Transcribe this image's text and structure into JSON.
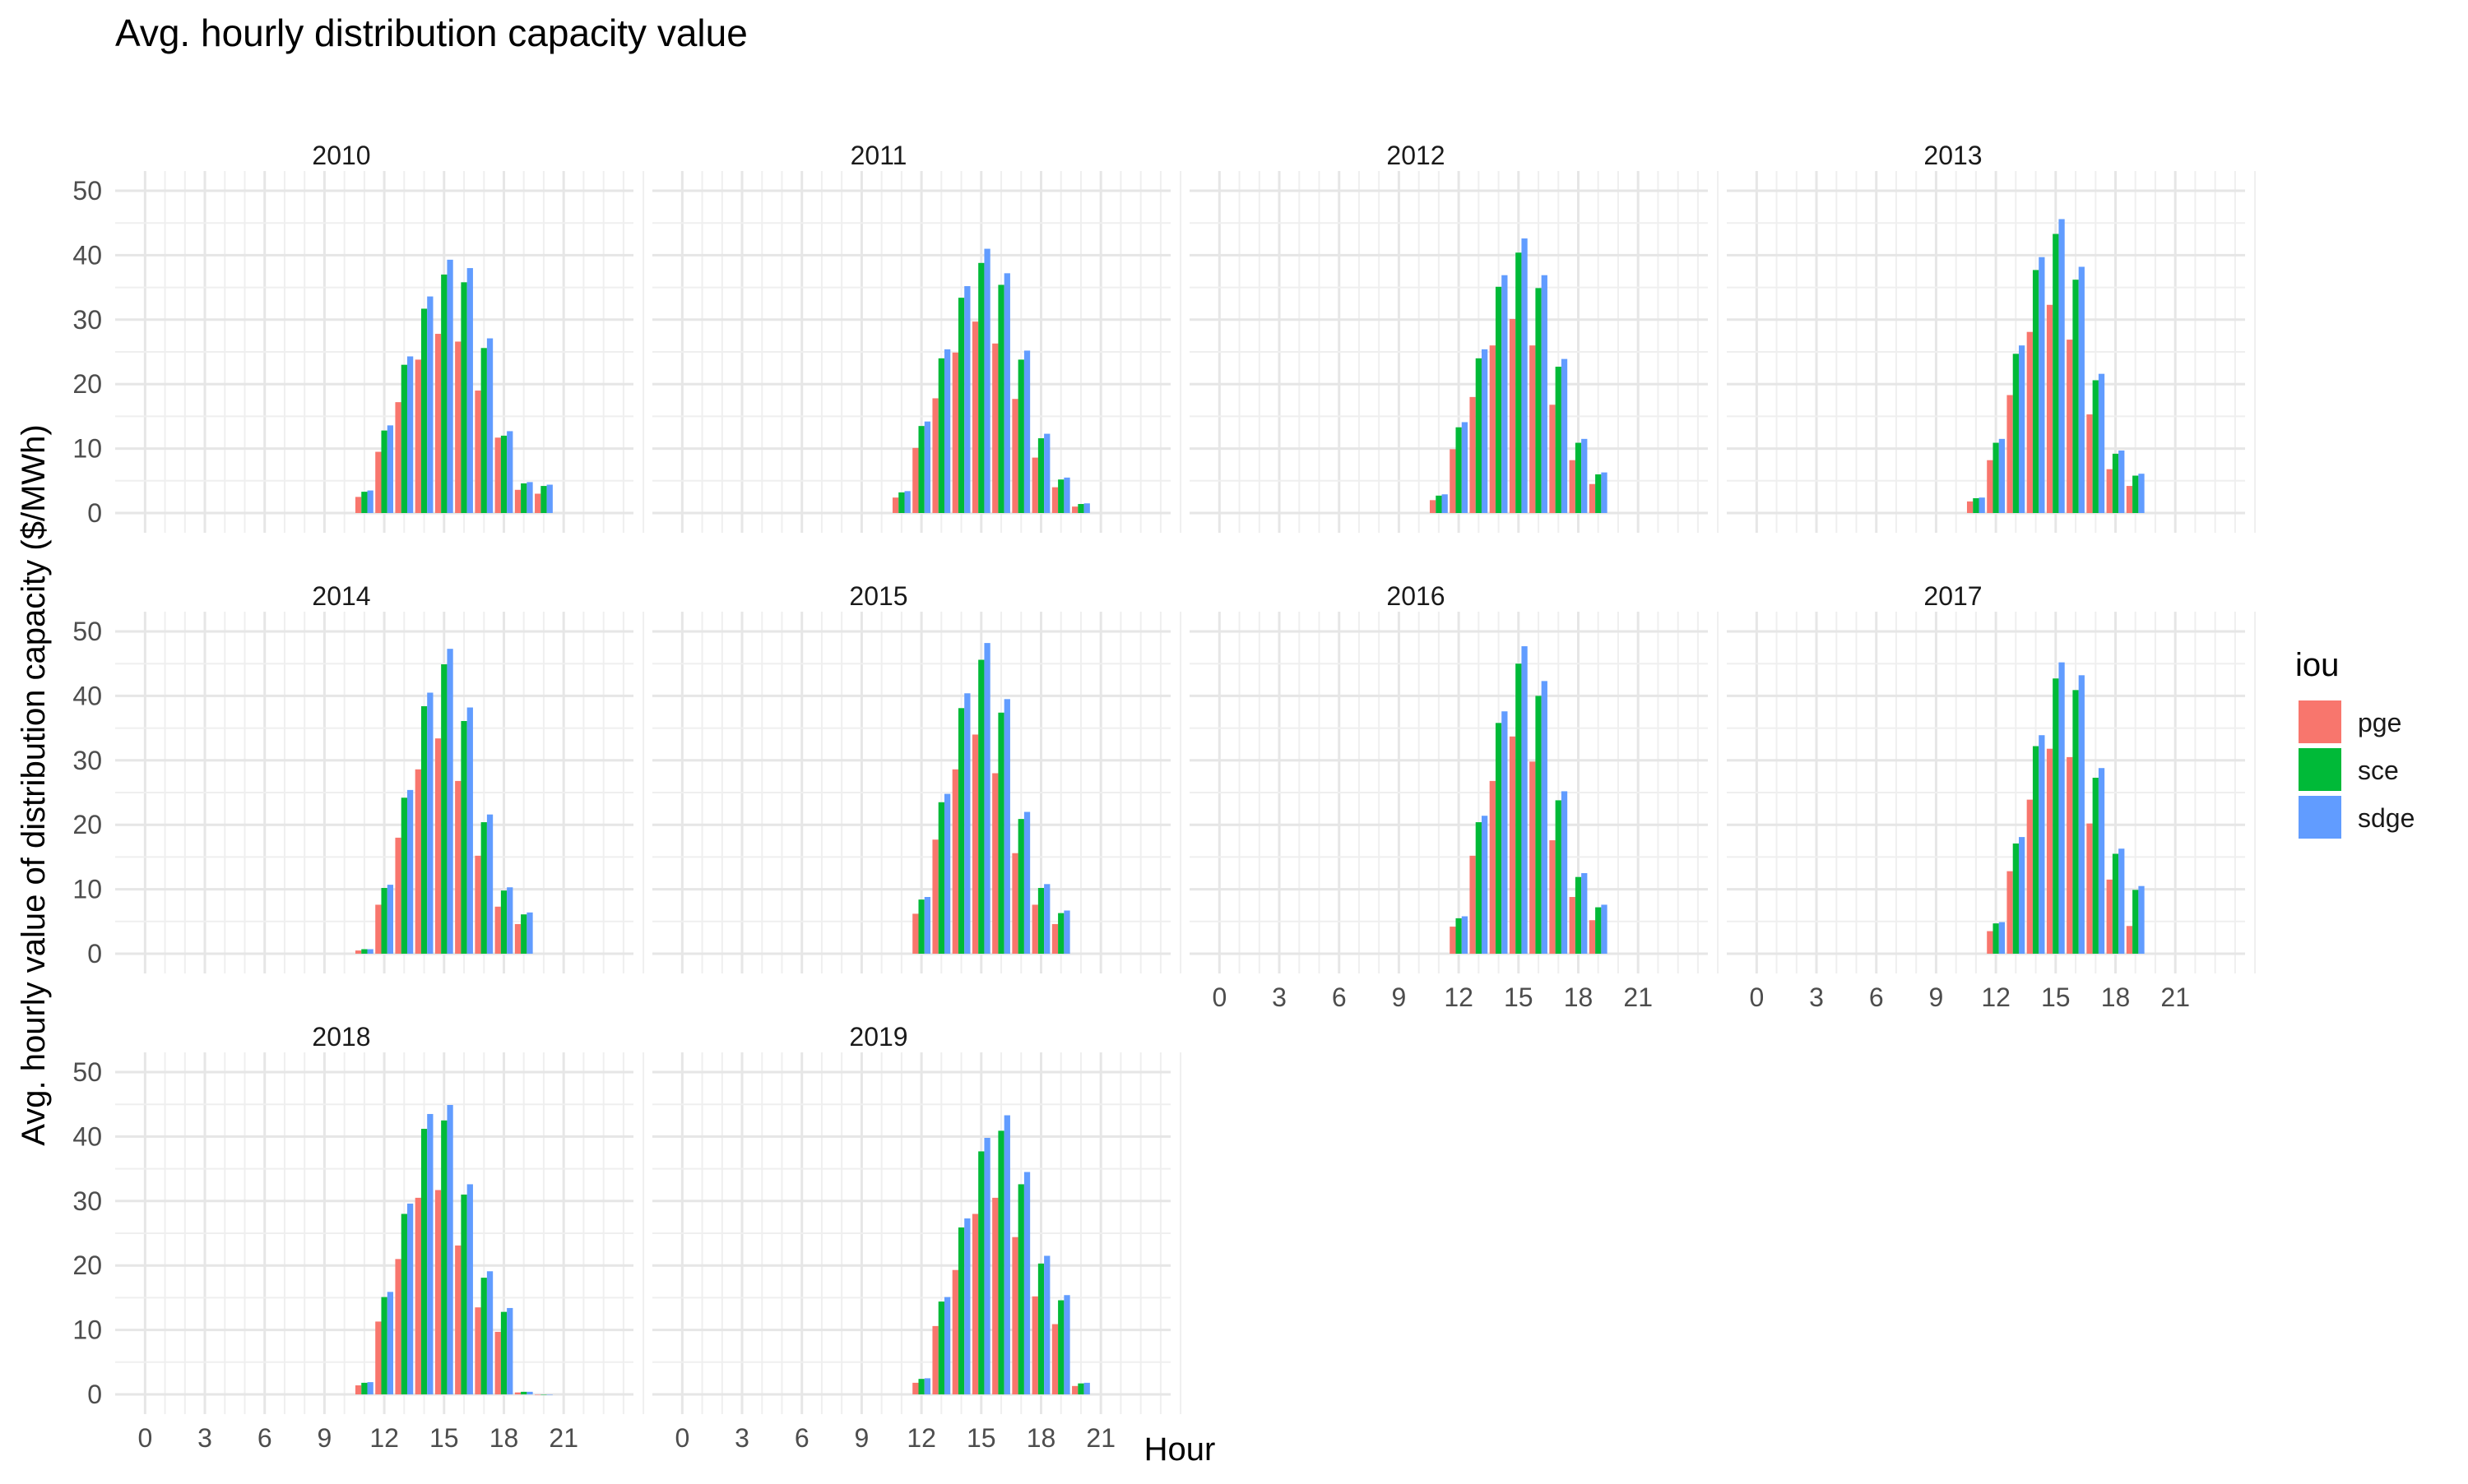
{
  "chart_data": {
    "type": "bar",
    "title": "Avg. hourly distribution capacity value",
    "xlabel": "Hour",
    "ylabel": "Avg. hourly value of distribution capacity ($/MWh)",
    "x_ticks": [
      "0",
      "3",
      "6",
      "9",
      "12",
      "15",
      "18",
      "21"
    ],
    "y_ticks": [
      "0",
      "10",
      "20",
      "30",
      "40",
      "50"
    ],
    "xlim": [
      -1.5,
      24.5
    ],
    "ylim": [
      0,
      50
    ],
    "grid": true,
    "legend": {
      "title": "iou",
      "position": "right",
      "entries": [
        {
          "name": "pge",
          "color": "#F8766D"
        },
        {
          "name": "sce",
          "color": "#00BA38"
        },
        {
          "name": "sdge",
          "color": "#619CFF"
        }
      ]
    },
    "facets": [
      {
        "label": "2010",
        "hours": [
          11,
          12,
          13,
          14,
          15,
          16,
          17,
          18,
          19,
          20
        ],
        "series": [
          {
            "name": "pge",
            "values": [
              2.5,
              9.5,
              17.2,
              23.8,
              27.8,
              26.6,
              19.0,
              11.7,
              3.6,
              3.0
            ]
          },
          {
            "name": "sce",
            "values": [
              3.3,
              12.8,
              23.0,
              31.7,
              37.0,
              35.8,
              25.6,
              12.0,
              4.6,
              4.2
            ]
          },
          {
            "name": "sdge",
            "values": [
              3.5,
              13.6,
              24.3,
              33.6,
              39.3,
              38.0,
              27.1,
              12.7,
              4.8,
              4.4
            ]
          }
        ]
      },
      {
        "label": "2011",
        "hours": [
          11,
          12,
          13,
          14,
          15,
          16,
          17,
          18,
          19,
          20
        ],
        "series": [
          {
            "name": "pge",
            "values": [
              2.4,
              10.1,
              17.8,
              24.9,
              29.7,
              26.3,
              17.7,
              8.6,
              4.0,
              1.0
            ]
          },
          {
            "name": "sce",
            "values": [
              3.2,
              13.5,
              24.0,
              33.4,
              38.8,
              35.4,
              23.8,
              11.6,
              5.2,
              1.4
            ]
          },
          {
            "name": "sdge",
            "values": [
              3.4,
              14.2,
              25.4,
              35.2,
              41.0,
              37.2,
              25.2,
              12.3,
              5.5,
              1.5
            ]
          }
        ]
      },
      {
        "label": "2012",
        "hours": [
          11,
          12,
          13,
          14,
          15,
          16,
          17,
          18,
          19
        ],
        "series": [
          {
            "name": "pge",
            "values": [
              2.0,
              9.9,
              18.0,
              26.0,
              30.1,
              26.0,
              16.8,
              8.2,
              4.5
            ]
          },
          {
            "name": "sce",
            "values": [
              2.7,
              13.3,
              24.0,
              35.1,
              40.4,
              34.9,
              22.7,
              10.9,
              6.0
            ]
          },
          {
            "name": "sdge",
            "values": [
              2.9,
              14.1,
              25.4,
              36.9,
              42.6,
              36.9,
              23.9,
              11.5,
              6.3
            ]
          }
        ]
      },
      {
        "label": "2013",
        "hours": [
          11,
          12,
          13,
          14,
          15,
          16,
          17,
          18,
          19
        ],
        "series": [
          {
            "name": "pge",
            "values": [
              1.8,
              8.2,
              18.3,
              28.1,
              32.3,
              26.9,
              15.3,
              6.8,
              4.2
            ]
          },
          {
            "name": "sce",
            "values": [
              2.3,
              10.9,
              24.7,
              37.7,
              43.3,
              36.2,
              20.6,
              9.2,
              5.8
            ]
          },
          {
            "name": "sdge",
            "values": [
              2.4,
              11.5,
              26.0,
              39.7,
              45.6,
              38.2,
              21.6,
              9.7,
              6.1
            ]
          }
        ]
      },
      {
        "label": "2014",
        "hours": [
          11,
          12,
          13,
          14,
          15,
          16,
          17,
          18,
          19
        ],
        "series": [
          {
            "name": "pge",
            "values": [
              0.5,
              7.6,
              18.0,
              28.6,
              33.4,
              26.8,
              15.2,
              7.3,
              4.6
            ]
          },
          {
            "name": "sce",
            "values": [
              0.7,
              10.2,
              24.2,
              38.4,
              44.9,
              36.1,
              20.4,
              9.8,
              6.1
            ]
          },
          {
            "name": "sdge",
            "values": [
              0.7,
              10.7,
              25.4,
              40.5,
              47.3,
              38.2,
              21.6,
              10.3,
              6.4
            ]
          }
        ]
      },
      {
        "label": "2015",
        "hours": [
          12,
          13,
          14,
          15,
          16,
          17,
          18,
          19
        ],
        "series": [
          {
            "name": "pge",
            "values": [
              6.2,
              17.7,
              28.6,
              34.0,
              28.0,
              15.6,
              7.6,
              4.6
            ]
          },
          {
            "name": "sce",
            "values": [
              8.4,
              23.5,
              38.1,
              45.6,
              37.4,
              20.9,
              10.2,
              6.3
            ]
          },
          {
            "name": "sdge",
            "values": [
              8.8,
              24.8,
              40.4,
              48.2,
              39.5,
              22.0,
              10.8,
              6.7
            ]
          }
        ]
      },
      {
        "label": "2016",
        "hours": [
          12,
          13,
          14,
          15,
          16,
          17,
          18,
          19
        ],
        "series": [
          {
            "name": "pge",
            "values": [
              4.2,
              15.2,
              26.8,
              33.7,
              29.8,
              17.6,
              8.8,
              5.2
            ]
          },
          {
            "name": "sce",
            "values": [
              5.5,
              20.4,
              35.8,
              45.0,
              40.0,
              23.8,
              11.9,
              7.2
            ]
          },
          {
            "name": "sdge",
            "values": [
              5.8,
              21.4,
              37.6,
              47.7,
              42.3,
              25.2,
              12.5,
              7.6
            ]
          }
        ]
      },
      {
        "label": "2017",
        "hours": [
          12,
          13,
          14,
          15,
          16,
          17,
          18,
          19
        ],
        "series": [
          {
            "name": "pge",
            "values": [
              3.5,
              12.8,
              23.9,
              31.8,
              30.5,
              20.2,
              11.5,
              4.3
            ]
          },
          {
            "name": "sce",
            "values": [
              4.7,
              17.1,
              32.2,
              42.7,
              40.9,
              27.3,
              15.5,
              9.9
            ]
          },
          {
            "name": "sdge",
            "values": [
              4.9,
              18.1,
              33.9,
              45.2,
              43.2,
              28.8,
              16.3,
              10.5
            ]
          }
        ]
      },
      {
        "label": "2018",
        "hours": [
          11,
          12,
          13,
          14,
          15,
          16,
          17,
          18,
          19,
          20
        ],
        "series": [
          {
            "name": "pge",
            "values": [
              1.4,
              11.3,
              21.0,
              30.5,
              31.7,
              23.1,
              13.5,
              9.7,
              0.3,
              0.0
            ]
          },
          {
            "name": "sce",
            "values": [
              1.8,
              15.1,
              28.0,
              41.2,
              42.5,
              31.0,
              18.1,
              12.8,
              0.4,
              0.0
            ]
          },
          {
            "name": "sdge",
            "values": [
              1.9,
              15.9,
              29.6,
              43.5,
              44.9,
              32.6,
              19.1,
              13.4,
              0.4,
              0.0
            ]
          }
        ]
      },
      {
        "label": "2019",
        "hours": [
          12,
          13,
          14,
          15,
          16,
          17,
          18,
          19,
          20
        ],
        "series": [
          {
            "name": "pge",
            "values": [
              1.8,
              10.6,
              19.3,
              28.0,
              30.5,
              24.4,
              15.2,
              10.9,
              1.3
            ]
          },
          {
            "name": "sce",
            "values": [
              2.4,
              14.4,
              25.9,
              37.7,
              40.9,
              32.6,
              20.3,
              14.6,
              1.7
            ]
          },
          {
            "name": "sdge",
            "values": [
              2.5,
              15.1,
              27.3,
              39.8,
              43.3,
              34.5,
              21.5,
              15.4,
              1.8
            ]
          }
        ]
      }
    ]
  }
}
